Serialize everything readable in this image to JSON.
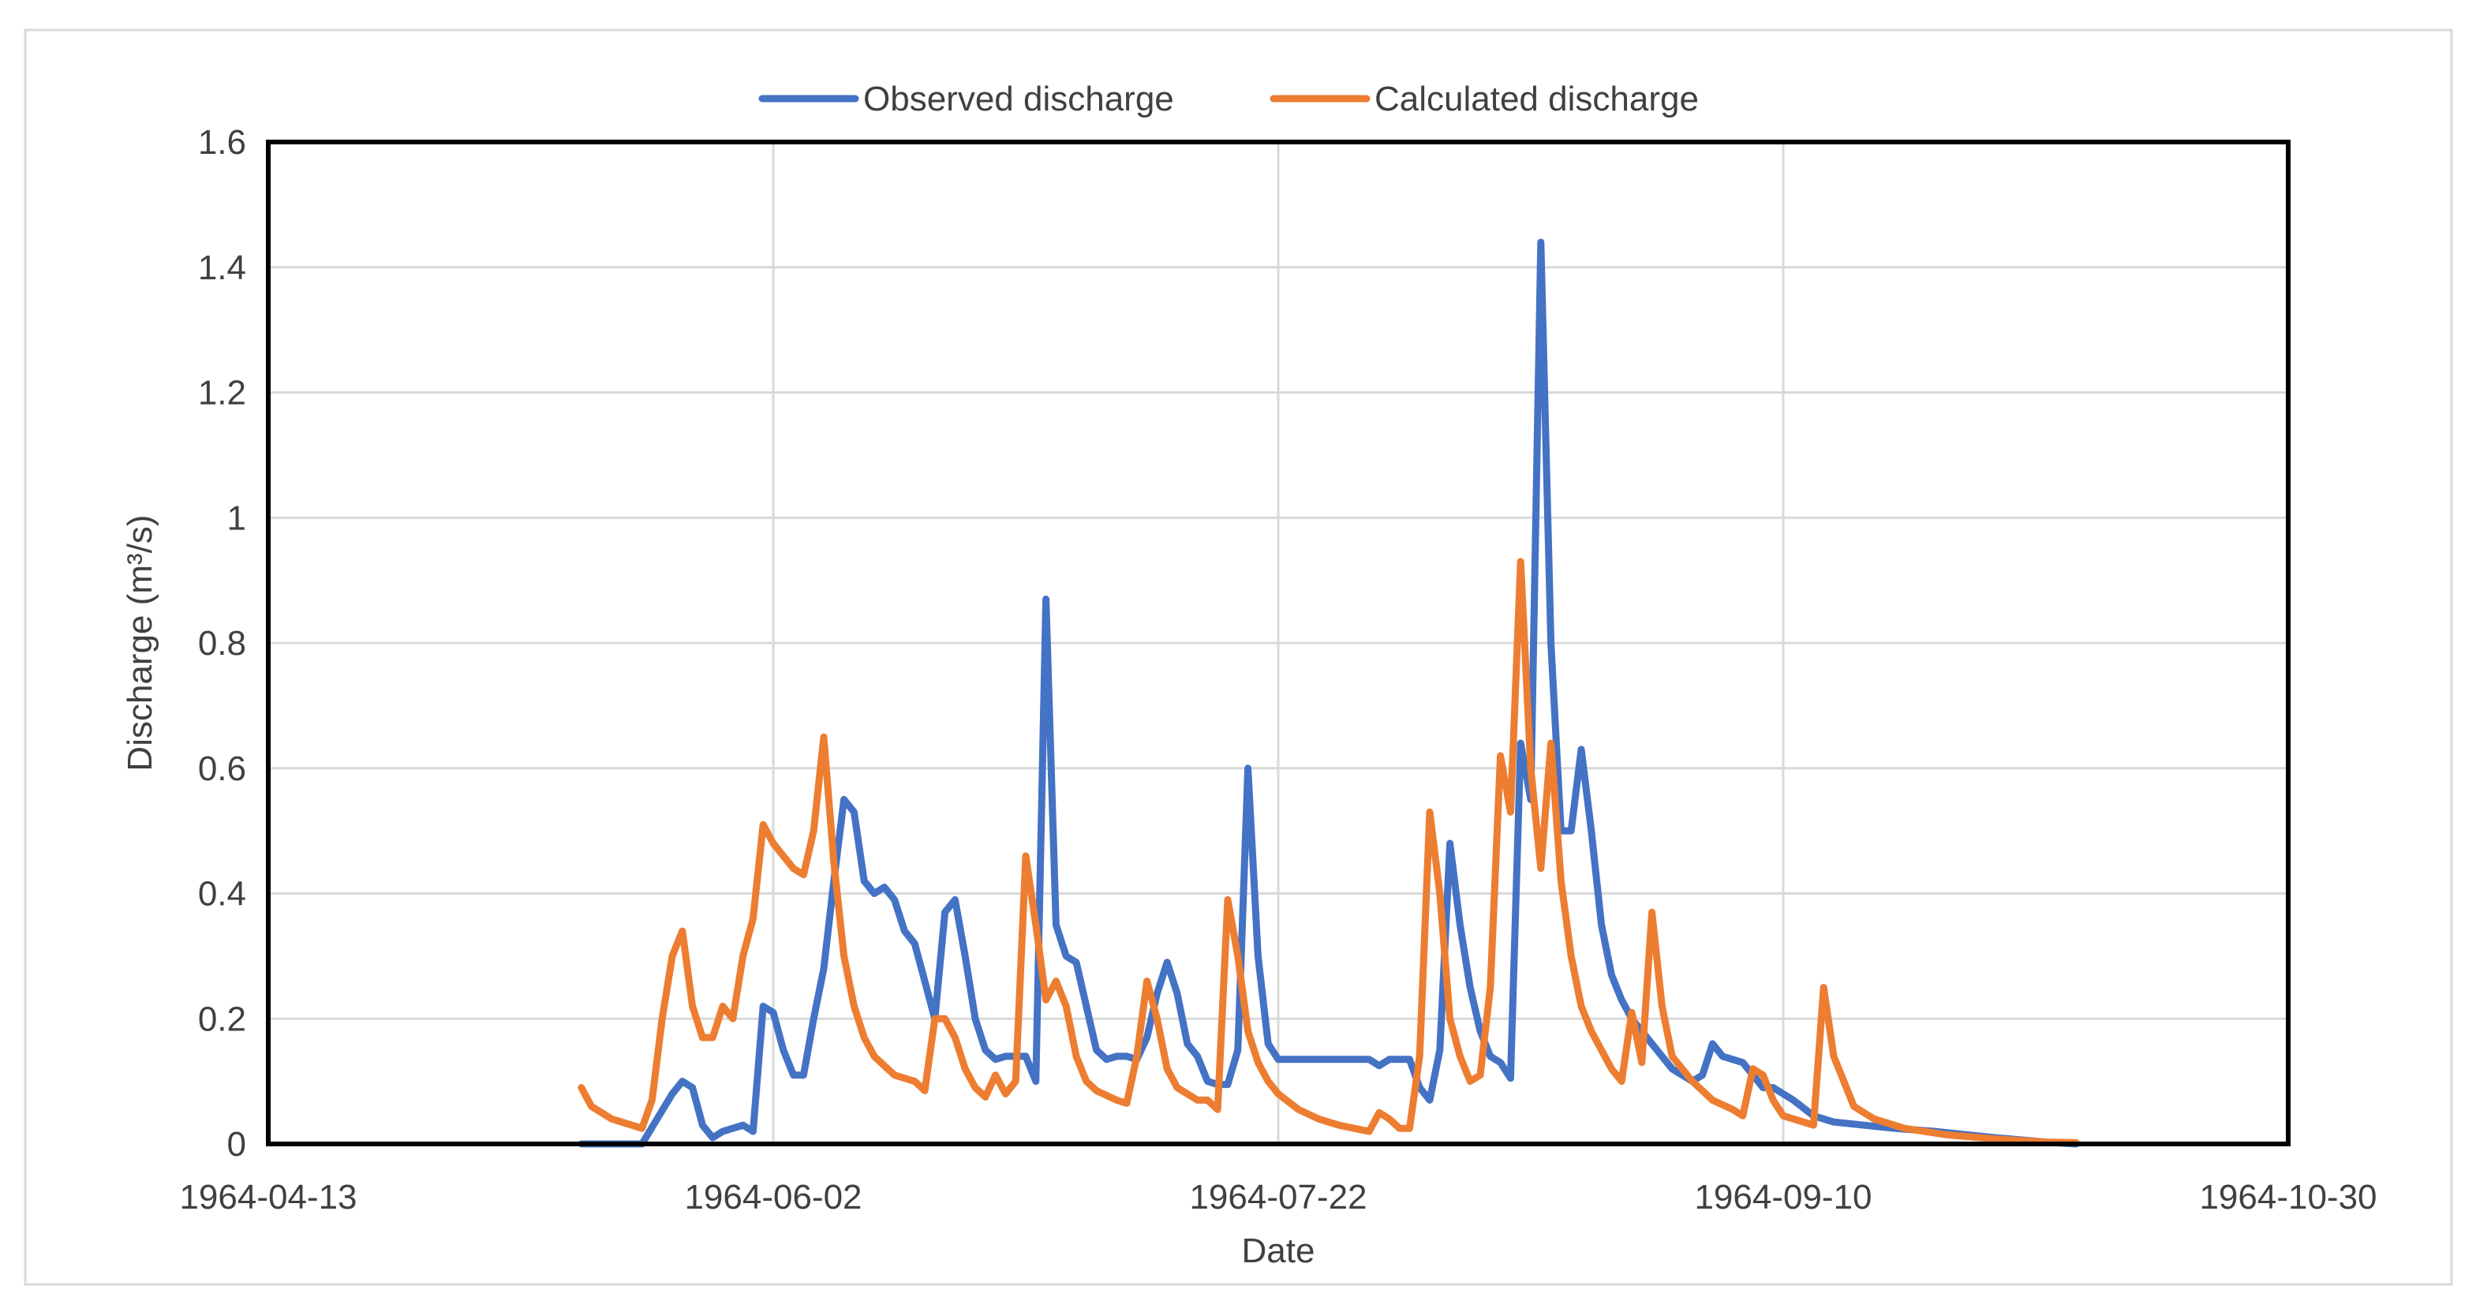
{
  "chart_data": {
    "type": "line",
    "title": "",
    "xlabel": "Date",
    "ylabel": "Discharge (m³/s)",
    "ylim": [
      0,
      1.6
    ],
    "yticks": [
      "0",
      "0.2",
      "0.4",
      "0.6",
      "0.8",
      "1",
      "1.2",
      "1.4",
      "1.6"
    ],
    "xlim": [
      "1964-04-13",
      "1964-10-30"
    ],
    "xticks": [
      "1964-04-13",
      "1964-06-02",
      "1964-07-22",
      "1964-09-10",
      "1964-10-30"
    ],
    "grid": true,
    "legend_position": "top-center",
    "series": [
      {
        "name": "Observed discharge",
        "color": "#4472C4",
        "points": [
          [
            "1964-05-14",
            0.0
          ],
          [
            "1964-05-20",
            0.0
          ],
          [
            "1964-05-23",
            0.08
          ],
          [
            "1964-05-24",
            0.1
          ],
          [
            "1964-05-25",
            0.09
          ],
          [
            "1964-05-26",
            0.03
          ],
          [
            "1964-05-27",
            0.01
          ],
          [
            "1964-05-28",
            0.02
          ],
          [
            "1964-05-29",
            0.025
          ],
          [
            "1964-05-30",
            0.03
          ],
          [
            "1964-05-31",
            0.02
          ],
          [
            "1964-06-01",
            0.22
          ],
          [
            "1964-06-02",
            0.21
          ],
          [
            "1964-06-03",
            0.15
          ],
          [
            "1964-06-04",
            0.11
          ],
          [
            "1964-06-05",
            0.11
          ],
          [
            "1964-06-06",
            0.2
          ],
          [
            "1964-06-07",
            0.28
          ],
          [
            "1964-06-08",
            0.42
          ],
          [
            "1964-06-09",
            0.55
          ],
          [
            "1964-06-10",
            0.53
          ],
          [
            "1964-06-11",
            0.42
          ],
          [
            "1964-06-12",
            0.4
          ],
          [
            "1964-06-13",
            0.41
          ],
          [
            "1964-06-14",
            0.39
          ],
          [
            "1964-06-15",
            0.34
          ],
          [
            "1964-06-16",
            0.32
          ],
          [
            "1964-06-17",
            0.26
          ],
          [
            "1964-06-18",
            0.2
          ],
          [
            "1964-06-19",
            0.37
          ],
          [
            "1964-06-20",
            0.39
          ],
          [
            "1964-06-21",
            0.3
          ],
          [
            "1964-06-22",
            0.2
          ],
          [
            "1964-06-23",
            0.15
          ],
          [
            "1964-06-24",
            0.135
          ],
          [
            "1964-06-25",
            0.14
          ],
          [
            "1964-06-26",
            0.14
          ],
          [
            "1964-06-27",
            0.14
          ],
          [
            "1964-06-28",
            0.1
          ],
          [
            "1964-06-29",
            0.87
          ],
          [
            "1964-06-30",
            0.35
          ],
          [
            "1964-07-01",
            0.3
          ],
          [
            "1964-07-02",
            0.29
          ],
          [
            "1964-07-03",
            0.22
          ],
          [
            "1964-07-04",
            0.15
          ],
          [
            "1964-07-05",
            0.135
          ],
          [
            "1964-07-06",
            0.14
          ],
          [
            "1964-07-07",
            0.14
          ],
          [
            "1964-07-08",
            0.135
          ],
          [
            "1964-07-09",
            0.17
          ],
          [
            "1964-07-10",
            0.24
          ],
          [
            "1964-07-11",
            0.29
          ],
          [
            "1964-07-12",
            0.24
          ],
          [
            "1964-07-13",
            0.16
          ],
          [
            "1964-07-14",
            0.14
          ],
          [
            "1964-07-15",
            0.1
          ],
          [
            "1964-07-16",
            0.095
          ],
          [
            "1964-07-17",
            0.095
          ],
          [
            "1964-07-18",
            0.15
          ],
          [
            "1964-07-19",
            0.6
          ],
          [
            "1964-07-20",
            0.3
          ],
          [
            "1964-07-21",
            0.16
          ],
          [
            "1964-07-22",
            0.135
          ],
          [
            "1964-07-24",
            0.135
          ],
          [
            "1964-07-27",
            0.135
          ],
          [
            "1964-07-31",
            0.135
          ],
          [
            "1964-08-01",
            0.125
          ],
          [
            "1964-08-02",
            0.135
          ],
          [
            "1964-08-03",
            0.135
          ],
          [
            "1964-08-04",
            0.135
          ],
          [
            "1964-08-05",
            0.09
          ],
          [
            "1964-08-06",
            0.07
          ],
          [
            "1964-08-07",
            0.15
          ],
          [
            "1964-08-08",
            0.48
          ],
          [
            "1964-08-09",
            0.35
          ],
          [
            "1964-08-10",
            0.25
          ],
          [
            "1964-08-11",
            0.18
          ],
          [
            "1964-08-12",
            0.14
          ],
          [
            "1964-08-13",
            0.13
          ],
          [
            "1964-08-14",
            0.105
          ],
          [
            "1964-08-15",
            0.64
          ],
          [
            "1964-08-16",
            0.55
          ],
          [
            "1964-08-17",
            1.44
          ],
          [
            "1964-08-18",
            0.8
          ],
          [
            "1964-08-19",
            0.5
          ],
          [
            "1964-08-20",
            0.5
          ],
          [
            "1964-08-21",
            0.63
          ],
          [
            "1964-08-22",
            0.5
          ],
          [
            "1964-08-23",
            0.35
          ],
          [
            "1964-08-24",
            0.27
          ],
          [
            "1964-08-25",
            0.23
          ],
          [
            "1964-08-26",
            0.2
          ],
          [
            "1964-08-28",
            0.16
          ],
          [
            "1964-08-30",
            0.12
          ],
          [
            "1964-09-01",
            0.1
          ],
          [
            "1964-09-02",
            0.11
          ],
          [
            "1964-09-03",
            0.16
          ],
          [
            "1964-09-04",
            0.14
          ],
          [
            "1964-09-06",
            0.13
          ],
          [
            "1964-09-07",
            0.11
          ],
          [
            "1964-09-08",
            0.09
          ],
          [
            "1964-09-09",
            0.09
          ],
          [
            "1964-09-11",
            0.07
          ],
          [
            "1964-09-13",
            0.045
          ],
          [
            "1964-09-15",
            0.035
          ],
          [
            "1964-09-18",
            0.03
          ],
          [
            "1964-09-21",
            0.025
          ],
          [
            "1964-09-25",
            0.02
          ],
          [
            "1964-10-01",
            0.01
          ],
          [
            "1964-10-06",
            0.003
          ],
          [
            "1964-10-09",
            0.0
          ]
        ]
      },
      {
        "name": "Calculated discharge",
        "color": "#ED7D31",
        "points": [
          [
            "1964-05-14",
            0.09
          ],
          [
            "1964-05-15",
            0.06
          ],
          [
            "1964-05-17",
            0.04
          ],
          [
            "1964-05-19",
            0.03
          ],
          [
            "1964-05-20",
            0.025
          ],
          [
            "1964-05-21",
            0.07
          ],
          [
            "1964-05-22",
            0.2
          ],
          [
            "1964-05-23",
            0.3
          ],
          [
            "1964-05-24",
            0.34
          ],
          [
            "1964-05-25",
            0.22
          ],
          [
            "1964-05-26",
            0.17
          ],
          [
            "1964-05-27",
            0.17
          ],
          [
            "1964-05-28",
            0.22
          ],
          [
            "1964-05-29",
            0.2
          ],
          [
            "1964-05-30",
            0.3
          ],
          [
            "1964-05-31",
            0.36
          ],
          [
            "1964-06-01",
            0.51
          ],
          [
            "1964-06-02",
            0.48
          ],
          [
            "1964-06-03",
            0.46
          ],
          [
            "1964-06-04",
            0.44
          ],
          [
            "1964-06-05",
            0.43
          ],
          [
            "1964-06-06",
            0.5
          ],
          [
            "1964-06-07",
            0.65
          ],
          [
            "1964-06-08",
            0.45
          ],
          [
            "1964-06-09",
            0.3
          ],
          [
            "1964-06-10",
            0.22
          ],
          [
            "1964-06-11",
            0.17
          ],
          [
            "1964-06-12",
            0.14
          ],
          [
            "1964-06-14",
            0.11
          ],
          [
            "1964-06-16",
            0.1
          ],
          [
            "1964-06-17",
            0.085
          ],
          [
            "1964-06-18",
            0.2
          ],
          [
            "1964-06-19",
            0.2
          ],
          [
            "1964-06-20",
            0.17
          ],
          [
            "1964-06-21",
            0.12
          ],
          [
            "1964-06-22",
            0.09
          ],
          [
            "1964-06-23",
            0.075
          ],
          [
            "1964-06-24",
            0.11
          ],
          [
            "1964-06-25",
            0.08
          ],
          [
            "1964-06-26",
            0.1
          ],
          [
            "1964-06-27",
            0.46
          ],
          [
            "1964-06-28",
            0.35
          ],
          [
            "1964-06-29",
            0.23
          ],
          [
            "1964-06-30",
            0.26
          ],
          [
            "1964-07-01",
            0.22
          ],
          [
            "1964-07-02",
            0.14
          ],
          [
            "1964-07-03",
            0.1
          ],
          [
            "1964-07-04",
            0.085
          ],
          [
            "1964-07-06",
            0.07
          ],
          [
            "1964-07-07",
            0.065
          ],
          [
            "1964-07-08",
            0.14
          ],
          [
            "1964-07-09",
            0.26
          ],
          [
            "1964-07-10",
            0.2
          ],
          [
            "1964-07-11",
            0.12
          ],
          [
            "1964-07-12",
            0.09
          ],
          [
            "1964-07-13",
            0.08
          ],
          [
            "1964-07-14",
            0.07
          ],
          [
            "1964-07-15",
            0.07
          ],
          [
            "1964-07-16",
            0.055
          ],
          [
            "1964-07-17",
            0.39
          ],
          [
            "1964-07-18",
            0.3
          ],
          [
            "1964-07-19",
            0.18
          ],
          [
            "1964-07-20",
            0.13
          ],
          [
            "1964-07-21",
            0.1
          ],
          [
            "1964-07-22",
            0.08
          ],
          [
            "1964-07-24",
            0.055
          ],
          [
            "1964-07-26",
            0.04
          ],
          [
            "1964-07-28",
            0.03
          ],
          [
            "1964-07-31",
            0.02
          ],
          [
            "1964-08-01",
            0.05
          ],
          [
            "1964-08-02",
            0.04
          ],
          [
            "1964-08-03",
            0.025
          ],
          [
            "1964-08-04",
            0.025
          ],
          [
            "1964-08-05",
            0.14
          ],
          [
            "1964-08-06",
            0.53
          ],
          [
            "1964-08-07",
            0.4
          ],
          [
            "1964-08-08",
            0.2
          ],
          [
            "1964-08-09",
            0.14
          ],
          [
            "1964-08-10",
            0.1
          ],
          [
            "1964-08-11",
            0.11
          ],
          [
            "1964-08-12",
            0.25
          ],
          [
            "1964-08-13",
            0.62
          ],
          [
            "1964-08-14",
            0.53
          ],
          [
            "1964-08-15",
            0.93
          ],
          [
            "1964-08-16",
            0.6
          ],
          [
            "1964-08-17",
            0.44
          ],
          [
            "1964-08-18",
            0.64
          ],
          [
            "1964-08-19",
            0.42
          ],
          [
            "1964-08-20",
            0.3
          ],
          [
            "1964-08-21",
            0.22
          ],
          [
            "1964-08-22",
            0.18
          ],
          [
            "1964-08-23",
            0.15
          ],
          [
            "1964-08-24",
            0.12
          ],
          [
            "1964-08-25",
            0.1
          ],
          [
            "1964-08-26",
            0.21
          ],
          [
            "1964-08-27",
            0.13
          ],
          [
            "1964-08-28",
            0.37
          ],
          [
            "1964-08-29",
            0.22
          ],
          [
            "1964-08-30",
            0.14
          ],
          [
            "1964-09-01",
            0.1
          ],
          [
            "1964-09-03",
            0.07
          ],
          [
            "1964-09-05",
            0.055
          ],
          [
            "1964-09-06",
            0.045
          ],
          [
            "1964-09-07",
            0.12
          ],
          [
            "1964-09-08",
            0.11
          ],
          [
            "1964-09-09",
            0.07
          ],
          [
            "1964-09-10",
            0.045
          ],
          [
            "1964-09-12",
            0.035
          ],
          [
            "1964-09-13",
            0.03
          ],
          [
            "1964-09-14",
            0.25
          ],
          [
            "1964-09-15",
            0.14
          ],
          [
            "1964-09-16",
            0.1
          ],
          [
            "1964-09-17",
            0.06
          ],
          [
            "1964-09-19",
            0.04
          ],
          [
            "1964-09-22",
            0.025
          ],
          [
            "1964-09-26",
            0.015
          ],
          [
            "1964-10-01",
            0.008
          ],
          [
            "1964-10-06",
            0.003
          ],
          [
            "1964-10-09",
            0.002
          ]
        ]
      }
    ]
  }
}
